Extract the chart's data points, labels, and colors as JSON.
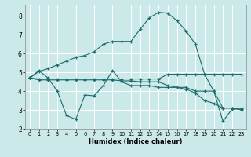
{
  "xlabel": "Humidex (Indice chaleur)",
  "bg_color": "#cce9e9",
  "grid_color": "#ffffff",
  "line_color": "#1a6b6b",
  "xlim": [
    -0.5,
    23.5
  ],
  "ylim": [
    2.0,
    8.6
  ],
  "yticks": [
    2,
    3,
    4,
    5,
    6,
    7,
    8
  ],
  "xticks": [
    0,
    1,
    2,
    3,
    4,
    5,
    6,
    7,
    8,
    9,
    10,
    11,
    12,
    13,
    14,
    15,
    16,
    17,
    18,
    19,
    20,
    21,
    22,
    23
  ],
  "line1_x": [
    0,
    1,
    2,
    3,
    4,
    5,
    6,
    7,
    8,
    9,
    10,
    11,
    12,
    13,
    14,
    15,
    16,
    17,
    18,
    19,
    20,
    21,
    22,
    23
  ],
  "line1_y": [
    4.7,
    5.1,
    4.7,
    4.0,
    2.7,
    2.5,
    3.8,
    3.75,
    4.3,
    5.1,
    4.5,
    4.3,
    4.3,
    4.3,
    4.2,
    4.2,
    4.2,
    4.2,
    4.0,
    4.0,
    4.0,
    3.1,
    3.1,
    3.1
  ],
  "line2_x": [
    0,
    1,
    2,
    3,
    4,
    5,
    6,
    7,
    8,
    9,
    10,
    11,
    12,
    13,
    14,
    15,
    16,
    17,
    18,
    19,
    20,
    21,
    22,
    23
  ],
  "line2_y": [
    4.7,
    4.65,
    4.65,
    4.65,
    4.65,
    4.65,
    4.65,
    4.65,
    4.65,
    4.65,
    4.65,
    4.65,
    4.65,
    4.65,
    4.65,
    4.9,
    4.9,
    4.9,
    4.9,
    4.9,
    4.0,
    2.4,
    3.05,
    3.05
  ],
  "line3_x": [
    0,
    1,
    2,
    3,
    4,
    5,
    6,
    7,
    8,
    9,
    10,
    11,
    12,
    13,
    14,
    15,
    16,
    17,
    18,
    19,
    20,
    21,
    22,
    23
  ],
  "line3_y": [
    4.7,
    4.6,
    4.6,
    4.6,
    4.6,
    4.6,
    4.6,
    4.6,
    4.6,
    4.6,
    4.55,
    4.55,
    4.5,
    4.5,
    4.5,
    4.3,
    4.2,
    4.1,
    3.9,
    3.5,
    3.35,
    3.1,
    3.1,
    3.0
  ],
  "line4_x": [
    0,
    1,
    2,
    3,
    4,
    5,
    6,
    7,
    8,
    9,
    10,
    11,
    12,
    13,
    14,
    15,
    16,
    17,
    18,
    19,
    20,
    21,
    22,
    23
  ],
  "line4_y": [
    4.7,
    5.05,
    5.2,
    5.4,
    5.6,
    5.8,
    5.9,
    6.1,
    6.5,
    6.65,
    6.65,
    6.65,
    7.3,
    7.9,
    8.2,
    8.15,
    7.75,
    7.2,
    6.5,
    4.9,
    4.9,
    4.9,
    4.9,
    4.9
  ]
}
